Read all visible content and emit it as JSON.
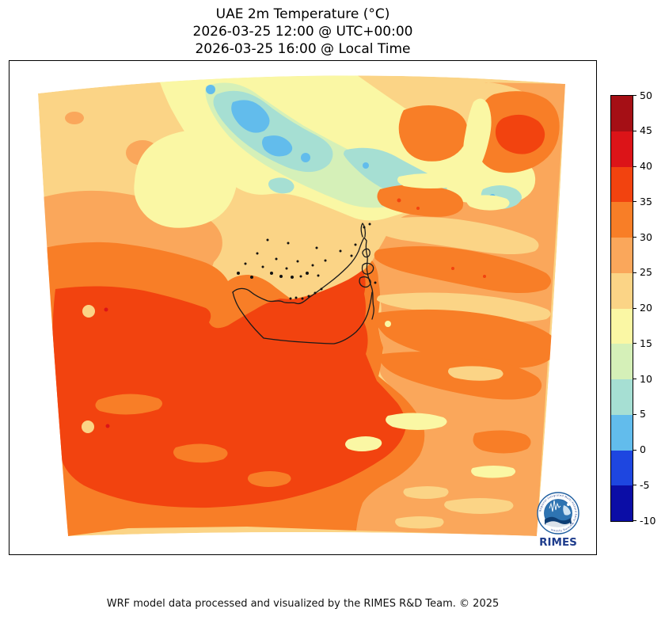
{
  "title": {
    "line1": "UAE 2m Temperature (°C)",
    "line2": "2026-03-25 12:00 @ UTC+00:00",
    "line3": "2026-03-25 16:00 @ Local Time"
  },
  "footer": {
    "credit": "WRF model data processed and visualized by the RIMES R&D Team. © 2025"
  },
  "logo": {
    "text": "RIMES",
    "ring_text": "Regional Integrated Multi-Hazard Early Warning System",
    "text_color": "#1E3C8C"
  },
  "palette": {
    "m10_m5": "#0B0DA6",
    "m5_0": "#1E46E0",
    "p0_5": "#62BCEC",
    "p5_10": "#A6DFD3",
    "p10_15": "#D5F0B8",
    "p15_20": "#FAF7A4",
    "p20_25": "#FBD486",
    "p25_30": "#FAA75B",
    "p30_35": "#F87E27",
    "p35_40": "#F2430F",
    "p40_45": "#DC1418",
    "p45_50": "#A50F15",
    "coast": "#1a1a1a"
  },
  "colorbar": {
    "ticks": [
      "50",
      "45",
      "40",
      "35",
      "30",
      "25",
      "20",
      "15",
      "10",
      "5",
      "0",
      "-5",
      "-10"
    ],
    "unit": "°C"
  },
  "chart_data": {
    "type": "filled_contour_map",
    "variable": "2m Temperature",
    "unit": "°C",
    "region": "UAE and surroundings (WRF model domain, Persian Gulf / Gulf of Oman)",
    "title": "UAE 2m Temperature (°C)",
    "valid_time_utc": "2026-03-25 12:00 @ UTC+00:00",
    "valid_time_local": "2026-03-25 16:00 @ Local Time",
    "levels_c": [
      -10,
      -5,
      0,
      5,
      10,
      15,
      20,
      25,
      30,
      35,
      40,
      45,
      50
    ],
    "level_colors": [
      "#0B0DA6",
      "#1E46E0",
      "#62BCEC",
      "#A6DFD3",
      "#D5F0B8",
      "#FAF7A4",
      "#FBD486",
      "#FAA75B",
      "#F87E27",
      "#F2430F",
      "#DC1418",
      "#A50F15"
    ],
    "colorbar_ticks": [
      50,
      45,
      40,
      35,
      30,
      25,
      20,
      15,
      10,
      5,
      0,
      -5,
      -10
    ],
    "legend_position": "right",
    "grid": false,
    "overlays": [
      "UAE coastline and administrative boundary in black",
      "offshore island dots"
    ],
    "features": [
      {
        "area": "Persian Gulf waters (north-centre of domain)",
        "approx_range_c": "20-25"
      },
      {
        "area": "Zagros mountain band (upper right, diagonal NW-SE)",
        "approx_range_c": "0-20, coldest pockets 0-5"
      },
      {
        "area": "Upper-left land patch (Qatar/Saudi coast)",
        "approx_range_c": "15-25"
      },
      {
        "area": "UAE coastal strip and inland desert",
        "approx_range_c": "35-40"
      },
      {
        "area": "Southwest desert interior (large red area)",
        "approx_range_c": "35-40 with 30-35 margins"
      },
      {
        "area": "Oman / Hajar mountains (right-middle diagonal streaks)",
        "approx_range_c": "20-35"
      },
      {
        "area": "Top-right corner highlands",
        "approx_range_c": "30-40"
      },
      {
        "area": "Bottom-right quadrant",
        "approx_range_c": "25-30"
      }
    ]
  }
}
